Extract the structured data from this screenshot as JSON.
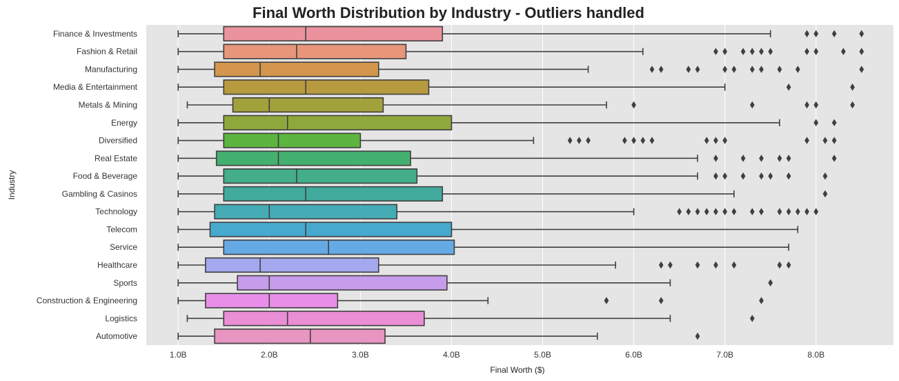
{
  "chart_data": {
    "type": "boxplot",
    "orientation": "horizontal",
    "title": "Final Worth Distribution by Industry - Outliers handled",
    "xlabel": "Final Worth ($)",
    "ylabel": "Industry",
    "xlim": [
      0.65,
      8.85
    ],
    "xticks": [
      1,
      2,
      3,
      4,
      5,
      6,
      7,
      8
    ],
    "xtick_labels": [
      "1.0B",
      "2.0B",
      "3.0B",
      "4.0B",
      "5.0B",
      "6.0B",
      "7.0B",
      "8.0B"
    ],
    "unit": "billions USD",
    "grid": "x-only",
    "background": "#e5e5e5",
    "series": [
      {
        "category": "Finance & Investments",
        "color": "#ea939f",
        "whisker_low": 1.0,
        "q1": 1.5,
        "median": 2.4,
        "q3": 3.9,
        "whisker_high": 7.5,
        "outliers": [
          7.9,
          8.0,
          8.2,
          8.5
        ]
      },
      {
        "category": "Fashion & Retail",
        "color": "#e8967a",
        "whisker_low": 1.0,
        "q1": 1.5,
        "median": 2.3,
        "q3": 3.5,
        "whisker_high": 6.1,
        "outliers": [
          6.9,
          7.0,
          7.2,
          7.3,
          7.4,
          7.5,
          7.9,
          8.0,
          8.3,
          8.5
        ]
      },
      {
        "category": "Manufacturing",
        "color": "#d3964c",
        "whisker_low": 1.0,
        "q1": 1.4,
        "median": 1.9,
        "q3": 3.2,
        "whisker_high": 5.5,
        "outliers": [
          6.2,
          6.3,
          6.6,
          6.7,
          7.0,
          7.1,
          7.3,
          7.4,
          7.6,
          7.8,
          8.5
        ]
      },
      {
        "category": "Media & Entertainment",
        "color": "#b79a3f",
        "whisker_low": 1.0,
        "q1": 1.5,
        "median": 2.4,
        "q3": 3.75,
        "whisker_high": 7.0,
        "outliers": [
          7.7,
          8.4
        ]
      },
      {
        "category": "Metals & Mining",
        "color": "#a2a23c",
        "whisker_low": 1.1,
        "q1": 1.6,
        "median": 2.0,
        "q3": 3.25,
        "whisker_high": 5.7,
        "outliers": [
          6.0,
          7.3,
          7.9,
          8.0,
          8.4
        ]
      },
      {
        "category": "Energy",
        "color": "#8fa83c",
        "whisker_low": 1.0,
        "q1": 1.5,
        "median": 2.2,
        "q3": 4.0,
        "whisker_high": 7.6,
        "outliers": [
          8.0,
          8.2
        ]
      },
      {
        "category": "Diversified",
        "color": "#5bb53f",
        "whisker_low": 1.0,
        "q1": 1.5,
        "median": 2.1,
        "q3": 3.0,
        "whisker_high": 4.9,
        "outliers": [
          5.3,
          5.4,
          5.5,
          5.9,
          6.0,
          6.1,
          6.2,
          6.8,
          6.9,
          7.0,
          7.9,
          8.1,
          8.2
        ]
      },
      {
        "category": "Real Estate",
        "color": "#44b06f",
        "whisker_low": 1.0,
        "q1": 1.42,
        "median": 2.1,
        "q3": 3.55,
        "whisker_high": 6.7,
        "outliers": [
          6.9,
          7.2,
          7.4,
          7.6,
          7.7,
          8.2
        ]
      },
      {
        "category": "Food & Beverage",
        "color": "#44ad8a",
        "whisker_low": 1.0,
        "q1": 1.5,
        "median": 2.3,
        "q3": 3.62,
        "whisker_high": 6.7,
        "outliers": [
          6.9,
          7.0,
          7.2,
          7.4,
          7.5,
          7.7,
          8.1
        ]
      },
      {
        "category": "Gambling & Casinos",
        "color": "#42aa9c",
        "whisker_low": 1.0,
        "q1": 1.5,
        "median": 2.4,
        "q3": 3.9,
        "whisker_high": 7.1,
        "outliers": [
          8.1
        ]
      },
      {
        "category": "Technology",
        "color": "#45abb4",
        "whisker_low": 1.0,
        "q1": 1.4,
        "median": 2.0,
        "q3": 3.4,
        "whisker_high": 6.0,
        "outliers": [
          6.5,
          6.6,
          6.7,
          6.8,
          6.9,
          7.0,
          7.1,
          7.3,
          7.4,
          7.6,
          7.7,
          7.8,
          7.9,
          8.0
        ]
      },
      {
        "category": "Telecom",
        "color": "#46a9cd",
        "whisker_low": 1.0,
        "q1": 1.35,
        "median": 2.4,
        "q3": 4.0,
        "whisker_high": 7.8,
        "outliers": []
      },
      {
        "category": "Service",
        "color": "#66aae5",
        "whisker_low": 1.0,
        "q1": 1.5,
        "median": 2.65,
        "q3": 4.03,
        "whisker_high": 7.7,
        "outliers": []
      },
      {
        "category": "Healthcare",
        "color": "#a4a8ee",
        "whisker_low": 1.0,
        "q1": 1.3,
        "median": 1.9,
        "q3": 3.2,
        "whisker_high": 5.8,
        "outliers": [
          6.3,
          6.4,
          6.7,
          6.9,
          7.1,
          7.6,
          7.7
        ]
      },
      {
        "category": "Sports",
        "color": "#c79ceb",
        "whisker_low": 1.0,
        "q1": 1.65,
        "median": 2.0,
        "q3": 3.95,
        "whisker_high": 6.4,
        "outliers": [
          7.5
        ]
      },
      {
        "category": "Construction & Engineering",
        "color": "#e88ee8",
        "whisker_low": 1.0,
        "q1": 1.3,
        "median": 2.0,
        "q3": 2.75,
        "whisker_high": 4.4,
        "outliers": [
          5.7,
          6.3,
          7.4
        ]
      },
      {
        "category": "Logistics",
        "color": "#ea8ed5",
        "whisker_low": 1.1,
        "q1": 1.5,
        "median": 2.2,
        "q3": 3.7,
        "whisker_high": 6.4,
        "outliers": [
          7.3
        ]
      },
      {
        "category": "Automotive",
        "color": "#e995c2",
        "whisker_low": 1.0,
        "q1": 1.4,
        "median": 2.45,
        "q3": 3.27,
        "whisker_high": 5.6,
        "outliers": [
          6.7
        ]
      }
    ]
  }
}
